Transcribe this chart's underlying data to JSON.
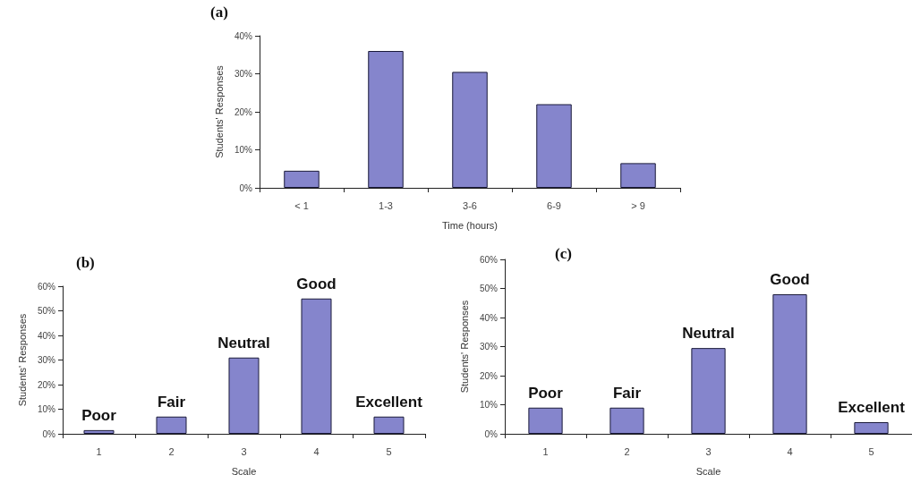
{
  "chart_data": [
    {
      "type": "bar",
      "title": "(a)",
      "xlabel": "Time (hours)",
      "ylabel": "Students' Responses",
      "categories": [
        "< 1",
        "1-3",
        "3-6",
        "6-9",
        "> 9"
      ],
      "values": [
        4.5,
        36,
        30.5,
        22,
        6.5
      ],
      "color": "#8585cc",
      "ylim": [
        0,
        40
      ],
      "yticks": [
        {
          "value": 0,
          "label": "0%"
        },
        {
          "value": 10,
          "label": "10%"
        },
        {
          "value": 20,
          "label": "20%"
        },
        {
          "value": 30,
          "label": "30%"
        },
        {
          "value": 40,
          "label": "40%"
        }
      ],
      "grid": false
    },
    {
      "type": "bar",
      "title": "(b)",
      "xlabel": "Scale",
      "ylabel": "Students' Responses",
      "categories": [
        "1",
        "2",
        "3",
        "4",
        "5"
      ],
      "values": [
        1.5,
        7,
        31,
        55,
        7
      ],
      "color": "#8585cc",
      "ylim": [
        0,
        60
      ],
      "yticks": [
        {
          "value": 0,
          "label": "0%"
        },
        {
          "value": 10,
          "label": "10%"
        },
        {
          "value": 20,
          "label": "20%"
        },
        {
          "value": 30,
          "label": "30%"
        },
        {
          "value": 40,
          "label": "40%"
        },
        {
          "value": 50,
          "label": "50%"
        },
        {
          "value": 60,
          "label": "60%"
        }
      ],
      "grid": false,
      "annotations": [
        {
          "text": "Poor",
          "x": "1",
          "y": 1.5
        },
        {
          "text": "Fair",
          "x": "2",
          "y": 7
        },
        {
          "text": "Neutral",
          "x": "3",
          "y": 31
        },
        {
          "text": "Good",
          "x": "4",
          "y": 55
        },
        {
          "text": "Excellent",
          "x": "5",
          "y": 7
        }
      ]
    },
    {
      "type": "bar",
      "title": "(c)",
      "xlabel": "Scale",
      "ylabel": "Students' Responses",
      "categories": [
        "1",
        "2",
        "3",
        "4",
        "5"
      ],
      "values": [
        9,
        9,
        29.5,
        48,
        4
      ],
      "color": "#8585cc",
      "ylim": [
        0,
        60
      ],
      "yticks": [
        {
          "value": 0,
          "label": "0%"
        },
        {
          "value": 10,
          "label": "10%"
        },
        {
          "value": 20,
          "label": "20%"
        },
        {
          "value": 30,
          "label": "30%"
        },
        {
          "value": 40,
          "label": "40%"
        },
        {
          "value": 50,
          "label": "50%"
        },
        {
          "value": 60,
          "label": "60%"
        }
      ],
      "grid": false,
      "annotations": [
        {
          "text": "Poor",
          "x": "1",
          "y": 9
        },
        {
          "text": "Fair",
          "x": "2",
          "y": 9
        },
        {
          "text": "Neutral",
          "x": "3",
          "y": 29.5
        },
        {
          "text": "Good",
          "x": "4",
          "y": 48
        },
        {
          "text": "Excellent",
          "x": "5",
          "y": 4
        }
      ]
    }
  ]
}
